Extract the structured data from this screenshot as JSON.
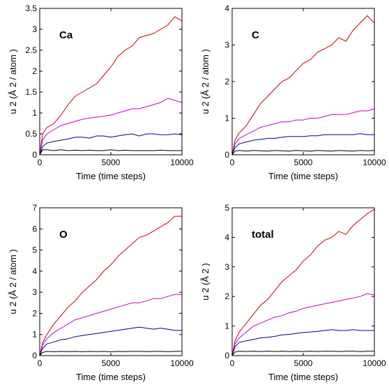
{
  "chart_data": [
    {
      "type": "line",
      "panel_label": "Ca",
      "xlabel": "Time (time steps)",
      "ylabel": "u 2 (Å 2 / atom )",
      "xlim": [
        0,
        10000
      ],
      "ylim": [
        0,
        3.5
      ],
      "xticks": [
        "0",
        "5000",
        "10000"
      ],
      "yticks": [
        "0",
        "0.5",
        "1",
        "1.5",
        "2",
        "2.5",
        "3",
        "3.5"
      ],
      "grid": false,
      "series": [
        {
          "color": "#cc0000",
          "x": [
            0,
            200,
            500,
            1000,
            1500,
            2000,
            2500,
            3000,
            3500,
            4000,
            4500,
            5000,
            5500,
            6000,
            6500,
            7000,
            7500,
            8000,
            8500,
            9000,
            9500,
            10000
          ],
          "values": [
            0,
            0.5,
            0.65,
            0.75,
            0.95,
            1.2,
            1.4,
            1.5,
            1.6,
            1.7,
            1.9,
            2.1,
            2.35,
            2.5,
            2.6,
            2.8,
            2.85,
            2.9,
            3.0,
            3.1,
            3.3,
            3.2
          ]
        },
        {
          "color": "#cc00cc",
          "x": [
            0,
            200,
            500,
            1000,
            1500,
            2000,
            2500,
            3000,
            3500,
            4000,
            4500,
            5000,
            5500,
            6000,
            6500,
            7000,
            7500,
            8000,
            8500,
            9000,
            9500,
            10000
          ],
          "values": [
            0,
            0.35,
            0.5,
            0.6,
            0.7,
            0.75,
            0.8,
            0.85,
            0.88,
            0.9,
            0.92,
            0.95,
            1.0,
            1.05,
            1.1,
            1.1,
            1.15,
            1.2,
            1.25,
            1.35,
            1.3,
            1.25
          ]
        },
        {
          "color": "#000099",
          "x": [
            0,
            200,
            500,
            1000,
            1500,
            2000,
            2500,
            3000,
            3500,
            4000,
            4500,
            5000,
            5500,
            6000,
            6500,
            7000,
            7500,
            8000,
            8500,
            9000,
            9500,
            10000
          ],
          "values": [
            0,
            0.2,
            0.28,
            0.32,
            0.35,
            0.38,
            0.42,
            0.42,
            0.4,
            0.45,
            0.45,
            0.42,
            0.45,
            0.48,
            0.5,
            0.45,
            0.5,
            0.5,
            0.48,
            0.48,
            0.5,
            0.48
          ]
        },
        {
          "color": "#000000",
          "x": [
            0,
            200,
            500,
            1000,
            1500,
            2000,
            2500,
            3000,
            3500,
            4000,
            4500,
            5000,
            5500,
            6000,
            6500,
            7000,
            7500,
            8000,
            8500,
            9000,
            9500,
            10000
          ],
          "values": [
            0,
            0.12,
            0.12,
            0.1,
            0.12,
            0.1,
            0.11,
            0.1,
            0.11,
            0.1,
            0.1,
            0.12,
            0.1,
            0.11,
            0.1,
            0.1,
            0.1,
            0.1,
            0.11,
            0.1,
            0.1,
            0.1
          ]
        }
      ]
    },
    {
      "type": "line",
      "panel_label": "C",
      "xlabel": "Time (time steps)",
      "ylabel": "u 2 (Å 2 / atom )",
      "xlim": [
        0,
        10000
      ],
      "ylim": [
        0,
        4
      ],
      "xticks": [
        "0",
        "5000",
        "10000"
      ],
      "yticks": [
        "0",
        "1",
        "2",
        "3",
        "4"
      ],
      "grid": false,
      "series": [
        {
          "color": "#cc0000",
          "x": [
            0,
            200,
            500,
            1000,
            1500,
            2000,
            2500,
            3000,
            3500,
            4000,
            4500,
            5000,
            5500,
            6000,
            6500,
            7000,
            7500,
            8000,
            8500,
            9000,
            9500,
            10000
          ],
          "values": [
            0,
            0.4,
            0.6,
            0.8,
            1.1,
            1.4,
            1.6,
            1.8,
            2.0,
            2.1,
            2.3,
            2.5,
            2.6,
            2.8,
            2.9,
            3.0,
            3.2,
            3.1,
            3.4,
            3.6,
            3.8,
            3.6
          ]
        },
        {
          "color": "#cc00cc",
          "x": [
            0,
            200,
            500,
            1000,
            1500,
            2000,
            2500,
            3000,
            3500,
            4000,
            4500,
            5000,
            5500,
            6000,
            6500,
            7000,
            7500,
            8000,
            8500,
            9000,
            9500,
            10000
          ],
          "values": [
            0,
            0.3,
            0.45,
            0.55,
            0.65,
            0.75,
            0.8,
            0.85,
            0.9,
            0.9,
            0.95,
            0.95,
            1.0,
            1.0,
            1.05,
            1.1,
            1.1,
            1.1,
            1.15,
            1.2,
            1.2,
            1.25
          ]
        },
        {
          "color": "#000099",
          "x": [
            0,
            200,
            500,
            1000,
            1500,
            2000,
            2500,
            3000,
            3500,
            4000,
            4500,
            5000,
            5500,
            6000,
            6500,
            7000,
            7500,
            8000,
            8500,
            9000,
            9500,
            10000
          ],
          "values": [
            0,
            0.2,
            0.3,
            0.35,
            0.4,
            0.42,
            0.45,
            0.45,
            0.48,
            0.5,
            0.5,
            0.5,
            0.52,
            0.52,
            0.55,
            0.55,
            0.55,
            0.55,
            0.55,
            0.58,
            0.55,
            0.55
          ]
        },
        {
          "color": "#000000",
          "x": [
            0,
            200,
            500,
            1000,
            1500,
            2000,
            2500,
            3000,
            3500,
            4000,
            4500,
            5000,
            5500,
            6000,
            6500,
            7000,
            7500,
            8000,
            8500,
            9000,
            9500,
            10000
          ],
          "values": [
            0,
            0.1,
            0.12,
            0.1,
            0.12,
            0.11,
            0.1,
            0.12,
            0.11,
            0.1,
            0.12,
            0.11,
            0.1,
            0.12,
            0.11,
            0.1,
            0.12,
            0.11,
            0.1,
            0.12,
            0.11,
            0.12
          ]
        }
      ]
    },
    {
      "type": "line",
      "panel_label": "O",
      "xlabel": "Time (time steps)",
      "ylabel": "u 2 (Å 2 / atom )",
      "xlim": [
        0,
        10000
      ],
      "ylim": [
        0,
        7
      ],
      "xticks": [
        "0",
        "5000",
        "10000"
      ],
      "yticks": [
        "0",
        "1",
        "2",
        "3",
        "4",
        "5",
        "6",
        "7"
      ],
      "grid": false,
      "series": [
        {
          "color": "#cc0000",
          "x": [
            0,
            200,
            500,
            1000,
            1500,
            2000,
            2500,
            3000,
            3500,
            4000,
            4500,
            5000,
            5500,
            6000,
            6500,
            7000,
            7500,
            8000,
            8500,
            9000,
            9500,
            10000
          ],
          "values": [
            0,
            0.6,
            1.0,
            1.5,
            1.9,
            2.3,
            2.6,
            3.0,
            3.3,
            3.6,
            4.0,
            4.3,
            4.7,
            5.0,
            5.3,
            5.6,
            5.7,
            5.9,
            6.1,
            6.3,
            6.6,
            6.6
          ]
        },
        {
          "color": "#cc00cc",
          "x": [
            0,
            200,
            500,
            1000,
            1500,
            2000,
            2500,
            3000,
            3500,
            4000,
            4500,
            5000,
            5500,
            6000,
            6500,
            7000,
            7500,
            8000,
            8500,
            9000,
            9500,
            10000
          ],
          "values": [
            0,
            0.5,
            0.8,
            1.1,
            1.3,
            1.5,
            1.7,
            1.8,
            1.9,
            2.0,
            2.1,
            2.2,
            2.3,
            2.4,
            2.5,
            2.5,
            2.6,
            2.7,
            2.7,
            2.8,
            2.9,
            2.9
          ]
        },
        {
          "color": "#000099",
          "x": [
            0,
            200,
            500,
            1000,
            1500,
            2000,
            2500,
            3000,
            3500,
            4000,
            4500,
            5000,
            5500,
            6000,
            6500,
            7000,
            7500,
            8000,
            8500,
            9000,
            9500,
            10000
          ],
          "values": [
            0,
            0.35,
            0.55,
            0.65,
            0.75,
            0.8,
            0.9,
            0.95,
            1.0,
            1.05,
            1.1,
            1.15,
            1.2,
            1.25,
            1.3,
            1.35,
            1.3,
            1.25,
            1.3,
            1.25,
            1.2,
            1.2
          ]
        },
        {
          "color": "#000000",
          "x": [
            0,
            200,
            500,
            1000,
            1500,
            2000,
            2500,
            3000,
            3500,
            4000,
            4500,
            5000,
            5500,
            6000,
            6500,
            7000,
            7500,
            8000,
            8500,
            9000,
            9500,
            10000
          ],
          "values": [
            0,
            0.15,
            0.2,
            0.18,
            0.2,
            0.19,
            0.2,
            0.18,
            0.2,
            0.19,
            0.2,
            0.18,
            0.2,
            0.19,
            0.2,
            0.2,
            0.19,
            0.2,
            0.2,
            0.19,
            0.2,
            0.2
          ]
        }
      ]
    },
    {
      "type": "line",
      "panel_label": "total",
      "xlabel": "Time (time steps)",
      "ylabel": "u 2 (Å 2 )",
      "xlim": [
        0,
        10000
      ],
      "ylim": [
        0,
        5
      ],
      "xticks": [
        "0",
        "5000",
        "10000"
      ],
      "yticks": [
        "0",
        "1",
        "2",
        "3",
        "4",
        "5"
      ],
      "grid": false,
      "series": [
        {
          "color": "#cc0000",
          "x": [
            0,
            200,
            500,
            1000,
            1500,
            2000,
            2500,
            3000,
            3500,
            4000,
            4500,
            5000,
            5500,
            6000,
            6500,
            7000,
            7500,
            8000,
            8500,
            9000,
            9500,
            10000
          ],
          "values": [
            0,
            0.5,
            0.8,
            1.1,
            1.4,
            1.7,
            1.9,
            2.2,
            2.5,
            2.7,
            2.9,
            3.2,
            3.4,
            3.7,
            3.9,
            4.0,
            4.2,
            4.1,
            4.4,
            4.6,
            4.8,
            4.95
          ]
        },
        {
          "color": "#cc00cc",
          "x": [
            0,
            200,
            500,
            1000,
            1500,
            2000,
            2500,
            3000,
            3500,
            4000,
            4500,
            5000,
            5500,
            6000,
            6500,
            7000,
            7500,
            8000,
            8500,
            9000,
            9500,
            10000
          ],
          "values": [
            0,
            0.4,
            0.6,
            0.8,
            1.0,
            1.1,
            1.2,
            1.3,
            1.35,
            1.45,
            1.5,
            1.6,
            1.65,
            1.7,
            1.75,
            1.8,
            1.85,
            1.9,
            1.95,
            2.0,
            2.1,
            2.05
          ]
        },
        {
          "color": "#000099",
          "x": [
            0,
            200,
            500,
            1000,
            1500,
            2000,
            2500,
            3000,
            3500,
            4000,
            4500,
            5000,
            5500,
            6000,
            6500,
            7000,
            7500,
            8000,
            8500,
            9000,
            9500,
            10000
          ],
          "values": [
            0,
            0.3,
            0.45,
            0.5,
            0.55,
            0.6,
            0.62,
            0.65,
            0.7,
            0.72,
            0.75,
            0.78,
            0.8,
            0.82,
            0.85,
            0.88,
            0.85,
            0.85,
            0.88,
            0.85,
            0.85,
            0.85
          ]
        },
        {
          "color": "#000000",
          "x": [
            0,
            200,
            500,
            1000,
            1500,
            2000,
            2500,
            3000,
            3500,
            4000,
            4500,
            5000,
            5500,
            6000,
            6500,
            7000,
            7500,
            8000,
            8500,
            9000,
            9500,
            10000
          ],
          "values": [
            0,
            0.12,
            0.15,
            0.14,
            0.15,
            0.14,
            0.15,
            0.14,
            0.15,
            0.14,
            0.15,
            0.14,
            0.15,
            0.14,
            0.15,
            0.15,
            0.14,
            0.15,
            0.15,
            0.14,
            0.15,
            0.15
          ]
        }
      ]
    }
  ]
}
